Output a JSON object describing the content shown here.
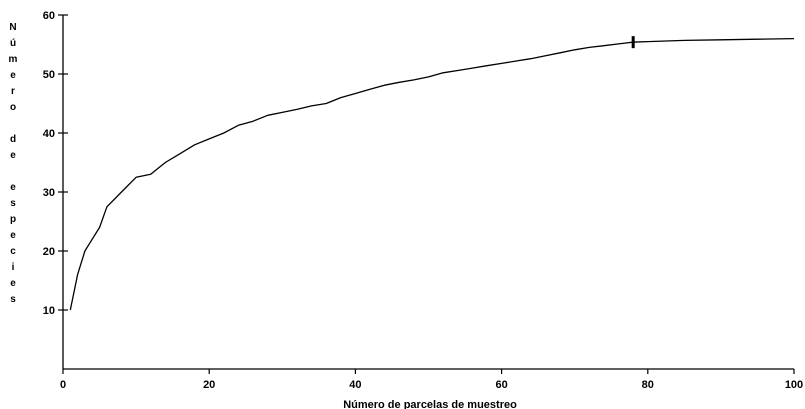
{
  "chart_data": {
    "type": "line",
    "title": "",
    "xlabel": "Número de parcelas de muestreo",
    "ylabel": "Número de especies",
    "xlim": [
      0,
      100
    ],
    "ylim": [
      0,
      60
    ],
    "x_ticks": [
      0,
      20,
      40,
      60,
      80,
      100
    ],
    "y_ticks": [
      10,
      20,
      30,
      40,
      50,
      60
    ],
    "grid": false,
    "legend": "none",
    "series": [
      {
        "color": "#000000",
        "x": [
          1,
          2,
          3,
          4,
          5,
          6,
          8,
          10,
          12,
          14,
          16,
          18,
          20,
          22,
          24,
          26,
          28,
          30,
          32,
          34,
          36,
          38,
          40,
          42,
          44,
          46,
          48,
          50,
          52,
          54,
          56,
          58,
          60,
          62,
          64,
          66,
          68,
          70,
          72,
          74,
          76,
          78,
          80,
          85,
          90,
          95,
          100
        ],
        "y": [
          10,
          16,
          20,
          22,
          24,
          27.5,
          30,
          32.5,
          33,
          35,
          36.5,
          38,
          39,
          40,
          41.3,
          42,
          43,
          43.5,
          44,
          44.6,
          45,
          46,
          46.7,
          47.4,
          48.1,
          48.6,
          49,
          49.5,
          50.2,
          50.6,
          51,
          51.4,
          51.8,
          52.2,
          52.6,
          53.1,
          53.6,
          54.1,
          54.5,
          54.8,
          55.1,
          55.4,
          55.5,
          55.7,
          55.8,
          55.9,
          56
        ]
      }
    ],
    "marker": {
      "x": 78,
      "y": 55.4
    }
  }
}
